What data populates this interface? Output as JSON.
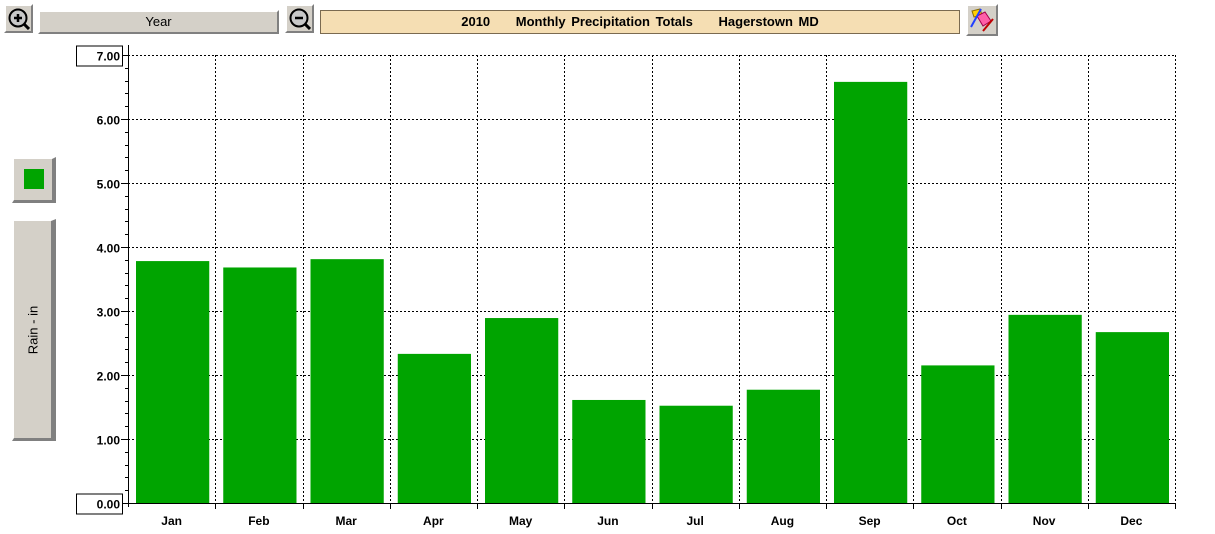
{
  "toolbar": {
    "zoom_in_icon": "zoom-in-icon",
    "zoom_out_icon": "zoom-out-icon",
    "period_label": "Year",
    "title": {
      "year": "2010",
      "text": "Monthly Precipitation Totals",
      "station": "Hagerstown MD"
    },
    "clear_icon": "eraser-icon"
  },
  "legend": {
    "series_color": "#00a400",
    "y_axis_button_label": "Rain - in"
  },
  "chart_data": {
    "type": "bar",
    "categories": [
      "Jan",
      "Feb",
      "Mar",
      "Apr",
      "May",
      "Jun",
      "Jul",
      "Aug",
      "Sep",
      "Oct",
      "Nov",
      "Dec"
    ],
    "series": [
      {
        "values": [
          3.78,
          3.68,
          3.81,
          2.33,
          2.89,
          1.61,
          1.52,
          1.77,
          6.58,
          2.15,
          2.94,
          2.67
        ],
        "color": "#00a400"
      }
    ],
    "ylabel": "Rain - in",
    "ylim": [
      0,
      7
    ],
    "y_ticks": [
      "0.00",
      "1.00",
      "2.00",
      "3.00",
      "4.00",
      "5.00",
      "6.00",
      "7.00"
    ],
    "grid": true,
    "grid_style": "dotted"
  }
}
